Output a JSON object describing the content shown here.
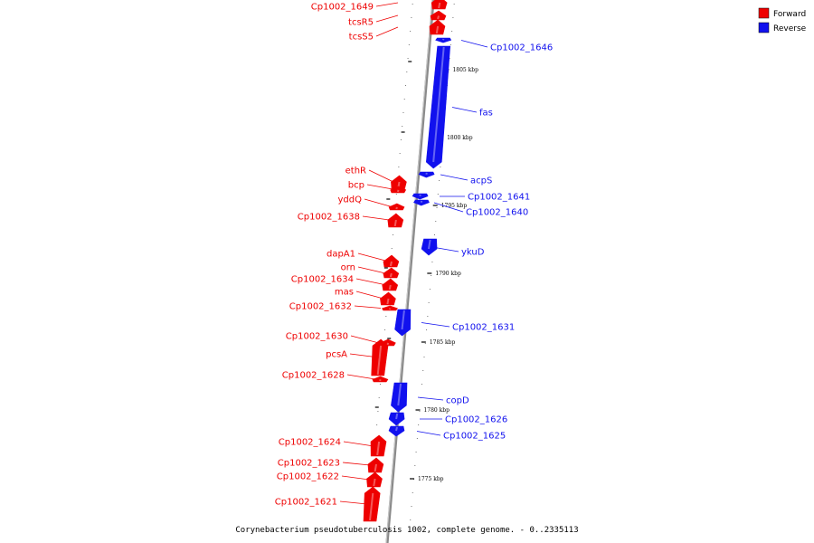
{
  "caption": "Corynebacterium pseudotuberculosis 1002, complete genome. - 0..2335113",
  "legend": [
    {
      "label": "Forward",
      "color": "#ee0000"
    },
    {
      "label": "Reverse",
      "color": "#1111ee"
    }
  ],
  "colors": {
    "forward": "#ee0000",
    "reverse": "#1111ee",
    "backbone": "#8a8a8a"
  },
  "scale_labels": [
    "1805 kbp",
    "1800 kbp",
    "1795 kbp",
    "1790 kbp",
    "1785 kbp",
    "1780 kbp",
    "1775 kbp"
  ],
  "genes": [
    {
      "name": "Cp1002_1649",
      "strand": "forward"
    },
    {
      "name": "tcsR5",
      "strand": "forward"
    },
    {
      "name": "tcsS5",
      "strand": "forward"
    },
    {
      "name": "Cp1002_1646",
      "strand": "reverse"
    },
    {
      "name": "fas",
      "strand": "reverse"
    },
    {
      "name": "acpS",
      "strand": "reverse"
    },
    {
      "name": "ethR",
      "strand": "forward"
    },
    {
      "name": "bcp",
      "strand": "forward"
    },
    {
      "name": "yddQ",
      "strand": "forward"
    },
    {
      "name": "Cp1002_1641",
      "strand": "reverse"
    },
    {
      "name": "Cp1002_1640",
      "strand": "reverse"
    },
    {
      "name": "Cp1002_1638",
      "strand": "forward"
    },
    {
      "name": "ykuD",
      "strand": "reverse"
    },
    {
      "name": "dapA1",
      "strand": "forward"
    },
    {
      "name": "orn",
      "strand": "forward"
    },
    {
      "name": "Cp1002_1634",
      "strand": "forward"
    },
    {
      "name": "mas",
      "strand": "forward"
    },
    {
      "name": "Cp1002_1632",
      "strand": "forward"
    },
    {
      "name": "Cp1002_1631",
      "strand": "reverse"
    },
    {
      "name": "Cp1002_1630",
      "strand": "forward"
    },
    {
      "name": "pcsA",
      "strand": "forward"
    },
    {
      "name": "Cp1002_1628",
      "strand": "forward"
    },
    {
      "name": "copD",
      "strand": "reverse"
    },
    {
      "name": "Cp1002_1626",
      "strand": "reverse"
    },
    {
      "name": "Cp1002_1625",
      "strand": "reverse"
    },
    {
      "name": "Cp1002_1624",
      "strand": "forward"
    },
    {
      "name": "Cp1002_1623",
      "strand": "forward"
    },
    {
      "name": "Cp1002_1622",
      "strand": "forward"
    },
    {
      "name": "Cp1002_1621",
      "strand": "forward"
    }
  ]
}
